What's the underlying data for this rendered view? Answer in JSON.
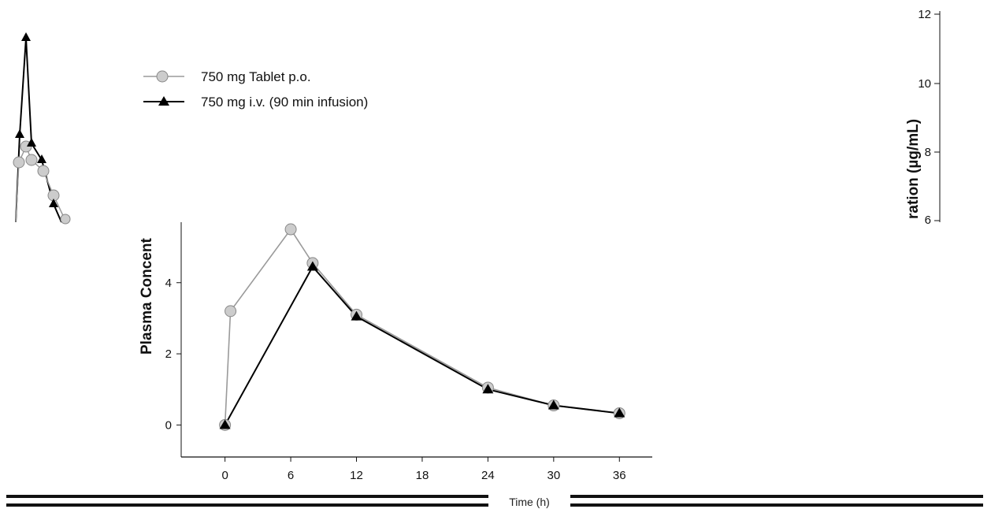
{
  "chart_data": {
    "type": "line",
    "title": "",
    "xlabel": "",
    "ylabel": "Plasma Concent",
    "x_ticks": [
      0,
      6,
      12,
      18,
      24,
      30,
      36
    ],
    "y_ticks": [
      0,
      2,
      4
    ],
    "xlim": [
      -4,
      39
    ],
    "ylim": [
      -0.9,
      5.7
    ],
    "legend_position": "top-left",
    "series": [
      {
        "name": "750 mg Tablet p.o.",
        "marker": "circle",
        "line_color": "#9a9a9a",
        "marker_fill": "#cccccc",
        "x": [
          0,
          0.5,
          6,
          8,
          12,
          24,
          30,
          36
        ],
        "y": [
          0,
          3.2,
          5.5,
          4.55,
          3.1,
          1.05,
          0.55,
          0.33
        ]
      },
      {
        "name": "750 mg i.v. (90 min infusion)",
        "marker": "triangle",
        "line_color": "#000000",
        "marker_fill": "#000000",
        "x": [
          0,
          8,
          12,
          24,
          30,
          36
        ],
        "y": [
          0,
          4.45,
          3.05,
          1.0,
          0.55,
          0.33
        ]
      }
    ]
  },
  "right_fragment": {
    "ylabel": "ration (µg/mL)",
    "y_ticks": [
      "12",
      "10",
      "8",
      "6"
    ]
  },
  "footer": {
    "label": "Time (h)"
  }
}
